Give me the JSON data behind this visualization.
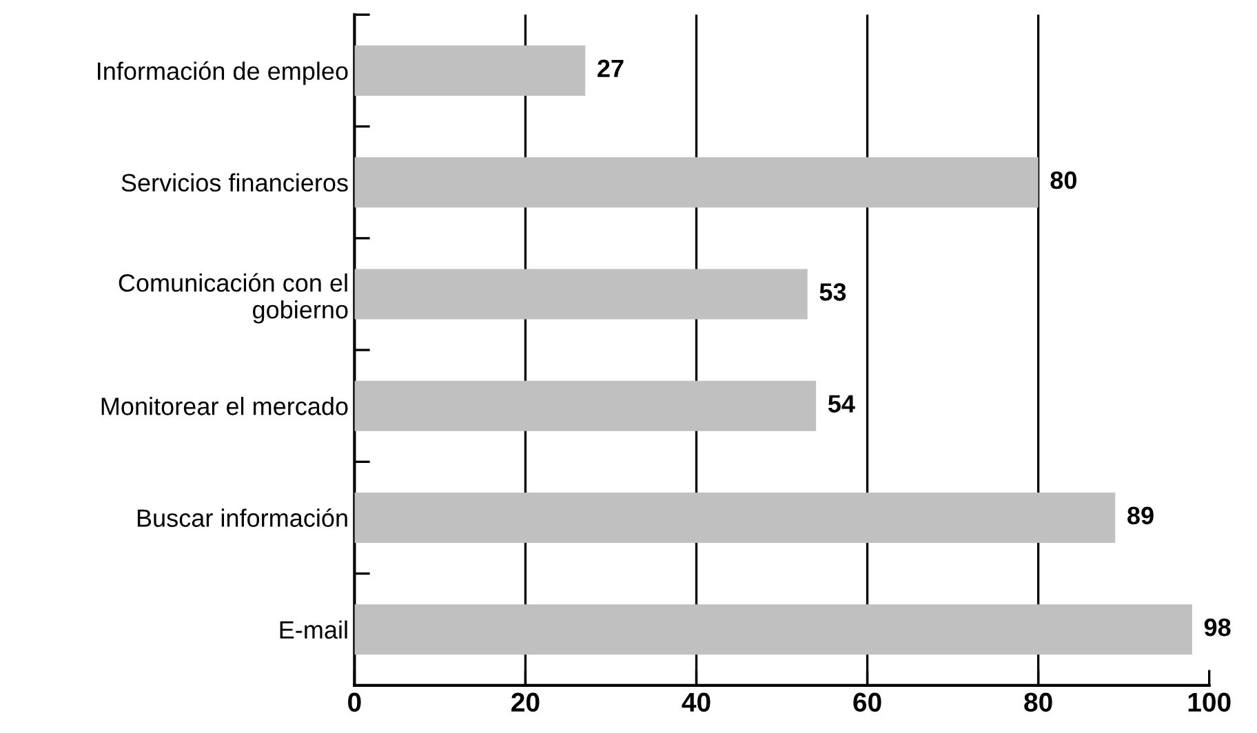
{
  "chart_data": {
    "type": "bar",
    "orientation": "horizontal",
    "categories": [
      "Información de empleo",
      "Servicios financieros",
      "Comunicación con el\ngobierno",
      "Monitorear el mercado",
      "Buscar información",
      "E-mail"
    ],
    "values": [
      27,
      80,
      53,
      54,
      89,
      98
    ],
    "color": "#c0c0c0",
    "xlim": [
      0,
      100
    ],
    "xticks": [
      0,
      20,
      40,
      60,
      80,
      100
    ],
    "grid": "x",
    "data_labels": true
  }
}
